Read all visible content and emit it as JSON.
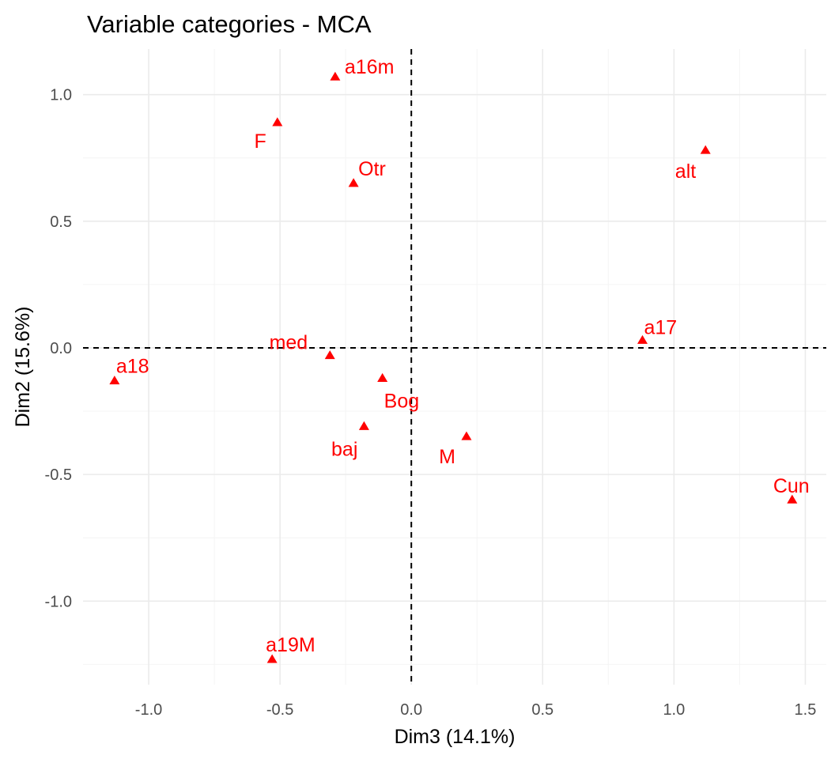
{
  "chart_data": {
    "type": "scatter",
    "title": "Variable categories - MCA",
    "xlabel": "Dim3 (14.1%)",
    "ylabel": "Dim2 (15.6%)",
    "xlim": [
      -1.25,
      1.58
    ],
    "ylim": [
      -1.33,
      1.18
    ],
    "x_ticks": [
      -1.0,
      -0.5,
      0.0,
      0.5,
      1.0,
      1.5
    ],
    "x_tick_labels": [
      "-1.0",
      "-0.5",
      "0.0",
      "0.5",
      "1.0",
      "1.5"
    ],
    "y_ticks": [
      -1.0,
      -0.5,
      0.0,
      0.5,
      1.0
    ],
    "y_tick_labels": [
      "-1.0",
      "-0.5",
      "0.0",
      "0.5",
      "1.0"
    ],
    "grid": true,
    "reference_lines": {
      "x": 0,
      "y": 0,
      "style": "dashed"
    },
    "marker": "triangle",
    "color": "#ff0000",
    "points": [
      {
        "label": "a16m",
        "x": -0.29,
        "y": 1.07
      },
      {
        "label": "F",
        "x": -0.51,
        "y": 0.89
      },
      {
        "label": "Otr",
        "x": -0.22,
        "y": 0.65
      },
      {
        "label": "alt",
        "x": 1.12,
        "y": 0.78
      },
      {
        "label": "a17",
        "x": 0.88,
        "y": 0.03
      },
      {
        "label": "med",
        "x": -0.31,
        "y": -0.03
      },
      {
        "label": "a18",
        "x": -1.13,
        "y": -0.13
      },
      {
        "label": "Bog",
        "x": -0.11,
        "y": -0.12
      },
      {
        "label": "baj",
        "x": -0.18,
        "y": -0.31
      },
      {
        "label": "M",
        "x": 0.21,
        "y": -0.35
      },
      {
        "label": "Cun",
        "x": 1.45,
        "y": -0.6
      },
      {
        "label": "a19M",
        "x": -0.53,
        "y": -1.23
      }
    ]
  }
}
